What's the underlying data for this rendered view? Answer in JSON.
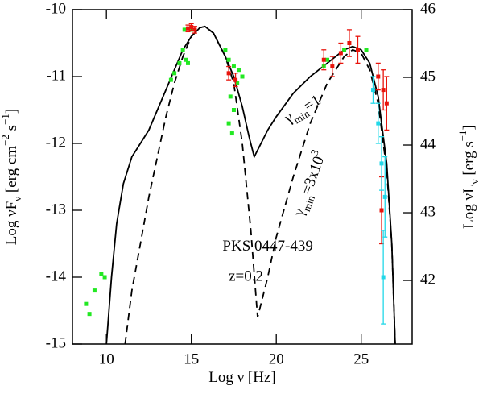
{
  "chart_data": {
    "type": "line",
    "xlabel": [
      "Log ν  [Hz]"
    ],
    "ylabel": [
      "Log νF",
      "ν",
      "  [erg cm",
      "−2",
      " s",
      "−1",
      "]"
    ],
    "y2label": [
      "Log νL",
      "ν",
      "  [erg s",
      "−1",
      "]"
    ],
    "xlim": [
      8,
      28
    ],
    "ylim": [
      -15,
      -10
    ],
    "y2lim": [
      41.06,
      46
    ],
    "xticks": [
      10,
      15,
      20,
      25
    ],
    "yticks": [
      -15,
      -14,
      -13,
      -12,
      -11,
      -10
    ],
    "y2ticks": [
      42,
      43,
      44,
      45,
      46
    ],
    "source": "PKS 0447-439",
    "redshift": "z=0.2",
    "curve_labels": [
      [
        "γ",
        "min",
        "=1"
      ],
      [
        "γ",
        "min",
        "=3x10",
        "3"
      ]
    ],
    "series": [
      {
        "style": "solid",
        "color": "#000000",
        "x": [
          10.0,
          10.3,
          10.6,
          11.0,
          11.5,
          12.0,
          12.5,
          13.0,
          13.5,
          14.0,
          14.5,
          15.0,
          15.5,
          15.8,
          16.3,
          17.0,
          17.5,
          18.0,
          18.4,
          18.7,
          19.0,
          19.5,
          20.0,
          21.0,
          22.0,
          23.0,
          24.0,
          24.5,
          25.0,
          25.5,
          26.0,
          26.5,
          26.8,
          27.0
        ],
        "y": [
          -15.0,
          -14.0,
          -13.2,
          -12.6,
          -12.2,
          -12.0,
          -11.8,
          -11.5,
          -11.2,
          -10.9,
          -10.6,
          -10.4,
          -10.27,
          -10.25,
          -10.35,
          -10.7,
          -11.0,
          -11.45,
          -11.9,
          -12.2,
          -12.05,
          -11.8,
          -11.6,
          -11.25,
          -11.0,
          -10.8,
          -10.6,
          -10.55,
          -10.6,
          -10.8,
          -11.3,
          -12.3,
          -13.5,
          -15.0
        ]
      },
      {
        "style": "dashed",
        "color": "#000000",
        "x": [
          11.1,
          11.5,
          12.0,
          12.5,
          13.0,
          13.5,
          14.0,
          14.5,
          15.0,
          15.5,
          15.8,
          16.3,
          17.0,
          17.5,
          18.0,
          18.5,
          18.9,
          19.5,
          20.0,
          21.0,
          22.0,
          23.0,
          24.0,
          24.5,
          25.0,
          25.5,
          26.0,
          26.5,
          26.8,
          27.0
        ],
        "y": [
          -15.0,
          -14.2,
          -13.5,
          -12.8,
          -12.2,
          -11.6,
          -11.1,
          -10.7,
          -10.4,
          -10.27,
          -10.25,
          -10.35,
          -10.7,
          -11.1,
          -12.0,
          -13.3,
          -14.6,
          -14.0,
          -13.4,
          -12.5,
          -11.7,
          -11.1,
          -10.7,
          -10.6,
          -10.65,
          -10.9,
          -11.4,
          -12.4,
          -13.5,
          -15.0
        ]
      },
      {
        "style": "points",
        "color": "#22e822",
        "x": [
          8.8,
          9.0,
          9.3,
          9.7,
          9.9,
          13.8,
          14.0,
          14.3,
          14.5,
          14.6,
          14.7,
          14.8,
          15.0,
          17.0,
          17.2,
          17.5,
          17.7,
          17.3,
          17.5,
          17.2,
          17.4,
          17.8,
          18.0,
          22.8,
          23.0,
          24.0,
          25.3
        ],
        "y": [
          -14.4,
          -14.55,
          -14.2,
          -13.95,
          -14.0,
          -11.05,
          -10.95,
          -10.8,
          -10.6,
          -10.3,
          -10.75,
          -10.8,
          -10.3,
          -10.6,
          -10.75,
          -10.85,
          -11.1,
          -11.3,
          -11.5,
          -11.7,
          -11.85,
          -10.9,
          -11.0,
          -10.85,
          -10.75,
          -10.6,
          -10.6
        ]
      },
      {
        "style": "points",
        "color": "#e8140c",
        "x": [
          14.8,
          15.0,
          15.2,
          17.2,
          17.6,
          22.8,
          23.3,
          23.8,
          24.3,
          24.8,
          26.0,
          26.3,
          26.5,
          26.2
        ],
        "y": [
          -10.28,
          -10.26,
          -10.3,
          -10.95,
          -11.05,
          -10.75,
          -10.85,
          -10.65,
          -10.5,
          -10.6,
          -11.0,
          -11.2,
          -11.4,
          -13.0
        ],
        "yerr": [
          0.05,
          0.05,
          0.05,
          0.1,
          0.1,
          0.15,
          0.15,
          0.15,
          0.2,
          0.2,
          0.2,
          0.3,
          0.4,
          0.5
        ]
      },
      {
        "style": "points",
        "color": "#22d8e8",
        "x": [
          25.7,
          26.0,
          26.2,
          26.4,
          26.3
        ],
        "y": [
          -11.2,
          -11.7,
          -12.3,
          -12.8,
          -14.0
        ],
        "yerr": [
          0.2,
          0.3,
          0.4,
          0.6,
          0.7
        ]
      }
    ]
  }
}
